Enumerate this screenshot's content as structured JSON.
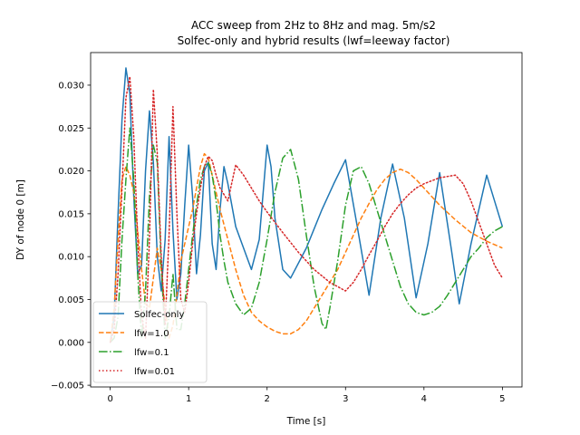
{
  "chart_data": {
    "type": "line",
    "title": "ACC sweep from 2Hz to 8Hz and mag. 5m/s2",
    "subtitle": "Solfec-only and hybrid results (lwf=leeway factor)",
    "xlabel": "Time [s]",
    "ylabel": "DY of node 0 [m]",
    "xlim": [
      -0.25,
      5.25
    ],
    "ylim": [
      -0.0052,
      0.0338
    ],
    "xticks": [
      0,
      1,
      2,
      3,
      4,
      5
    ],
    "xtick_labels": [
      "0",
      "1",
      "2",
      "3",
      "4",
      "5"
    ],
    "yticks": [
      -0.005,
      0.0,
      0.005,
      0.01,
      0.015,
      0.02,
      0.025,
      0.03
    ],
    "ytick_labels": [
      "−0.005",
      "0.000",
      "0.005",
      "0.010",
      "0.015",
      "0.020",
      "0.025",
      "0.030"
    ],
    "grid": false,
    "legend_position": "lower-left",
    "series": [
      {
        "name": "Solfec-only",
        "color": "#1f77b4",
        "dash": "solid",
        "x": [
          0.0,
          0.05,
          0.1,
          0.15,
          0.2,
          0.25,
          0.3,
          0.35,
          0.4,
          0.45,
          0.5,
          0.55,
          0.6,
          0.65,
          0.7,
          0.75,
          0.8,
          0.85,
          0.9,
          0.95,
          1.0,
          1.05,
          1.1,
          1.15,
          1.2,
          1.25,
          1.3,
          1.35,
          1.4,
          1.45,
          1.5,
          1.6,
          1.7,
          1.8,
          1.9,
          2.0,
          2.05,
          2.1,
          2.2,
          2.3,
          2.5,
          2.7,
          2.85,
          3.0,
          3.15,
          3.3,
          3.45,
          3.6,
          3.75,
          3.9,
          4.05,
          4.2,
          4.35,
          4.45,
          4.6,
          4.8,
          5.0
        ],
        "y": [
          0.0,
          0.003,
          0.015,
          0.026,
          0.032,
          0.029,
          0.017,
          0.008,
          0.009,
          0.02,
          0.027,
          0.021,
          0.01,
          0.006,
          0.012,
          0.024,
          0.013,
          0.005,
          0.008,
          0.016,
          0.023,
          0.017,
          0.008,
          0.0125,
          0.02,
          0.021,
          0.0115,
          0.0085,
          0.0155,
          0.0205,
          0.0185,
          0.0135,
          0.011,
          0.0085,
          0.012,
          0.023,
          0.0205,
          0.0145,
          0.0085,
          0.0075,
          0.011,
          0.0155,
          0.0185,
          0.0213,
          0.0135,
          0.0055,
          0.0145,
          0.0208,
          0.0145,
          0.0052,
          0.0115,
          0.0198,
          0.0108,
          0.0045,
          0.0115,
          0.0195,
          0.0135
        ]
      },
      {
        "name": "lfw=1.0",
        "color": "#ff7f0e",
        "dash": "dashed",
        "x": [
          0.0,
          0.05,
          0.1,
          0.15,
          0.2,
          0.25,
          0.3,
          0.35,
          0.4,
          0.45,
          0.5,
          0.55,
          0.6,
          0.65,
          0.7,
          0.75,
          0.8,
          0.85,
          0.9,
          0.95,
          1.0,
          1.05,
          1.1,
          1.15,
          1.2,
          1.25,
          1.3,
          1.4,
          1.5,
          1.6,
          1.7,
          1.8,
          1.9,
          2.0,
          2.1,
          2.2,
          2.3,
          2.4,
          2.5,
          2.6,
          2.7,
          2.8,
          2.9,
          3.0,
          3.1,
          3.2,
          3.3,
          3.4,
          3.5,
          3.6,
          3.7,
          3.8,
          3.9,
          4.0,
          4.2,
          4.4,
          4.6,
          4.8,
          5.0
        ],
        "y": [
          0.0,
          0.004,
          0.012,
          0.019,
          0.0205,
          0.0195,
          0.0175,
          0.013,
          0.0085,
          0.0045,
          0.004,
          0.0075,
          0.011,
          0.0085,
          0.004,
          0.0005,
          0.002,
          0.0055,
          0.0095,
          0.0115,
          0.0135,
          0.0155,
          0.018,
          0.0205,
          0.022,
          0.0215,
          0.0195,
          0.0155,
          0.012,
          0.0085,
          0.0055,
          0.0035,
          0.0025,
          0.0018,
          0.0013,
          0.001,
          0.001,
          0.0015,
          0.0025,
          0.004,
          0.0055,
          0.007,
          0.0085,
          0.0105,
          0.0125,
          0.0145,
          0.0162,
          0.0178,
          0.019,
          0.0198,
          0.0202,
          0.0198,
          0.019,
          0.018,
          0.016,
          0.0143,
          0.0128,
          0.0118,
          0.011
        ]
      },
      {
        "name": "lfw=0.1",
        "color": "#2ca02c",
        "dash": "dashdot",
        "x": [
          0.0,
          0.05,
          0.1,
          0.15,
          0.2,
          0.25,
          0.3,
          0.35,
          0.4,
          0.45,
          0.5,
          0.55,
          0.6,
          0.65,
          0.7,
          0.75,
          0.8,
          0.85,
          0.9,
          0.95,
          1.0,
          1.05,
          1.1,
          1.15,
          1.2,
          1.25,
          1.3,
          1.35,
          1.4,
          1.45,
          1.5,
          1.6,
          1.7,
          1.8,
          1.9,
          2.0,
          2.1,
          2.2,
          2.3,
          2.4,
          2.5,
          2.6,
          2.7,
          2.75,
          2.8,
          2.9,
          3.0,
          3.1,
          3.2,
          3.3,
          3.4,
          3.5,
          3.6,
          3.7,
          3.8,
          3.9,
          4.0,
          4.1,
          4.2,
          4.3,
          4.4,
          4.5,
          4.6,
          4.7,
          4.8,
          4.9,
          5.0
        ],
        "y": [
          0.0,
          0.0005,
          0.003,
          0.012,
          0.019,
          0.025,
          0.019,
          0.008,
          0.0005,
          0.006,
          0.017,
          0.023,
          0.021,
          0.009,
          0.0005,
          0.003,
          0.008,
          0.0015,
          0.0015,
          0.0045,
          0.0085,
          0.0125,
          0.016,
          0.019,
          0.0205,
          0.021,
          0.0195,
          0.0165,
          0.0125,
          0.0095,
          0.007,
          0.0045,
          0.0032,
          0.004,
          0.007,
          0.012,
          0.0175,
          0.0215,
          0.0225,
          0.019,
          0.0125,
          0.0065,
          0.0022,
          0.0015,
          0.004,
          0.0095,
          0.016,
          0.02,
          0.0205,
          0.0185,
          0.0155,
          0.0125,
          0.0095,
          0.0065,
          0.0045,
          0.0035,
          0.0032,
          0.0035,
          0.0042,
          0.0055,
          0.007,
          0.0085,
          0.01,
          0.011,
          0.0122,
          0.013,
          0.0135
        ]
      },
      {
        "name": "lfw=0.01",
        "color": "#d62728",
        "dash": "dotted",
        "x": [
          0.0,
          0.05,
          0.1,
          0.15,
          0.2,
          0.25,
          0.3,
          0.35,
          0.4,
          0.45,
          0.5,
          0.55,
          0.6,
          0.65,
          0.7,
          0.75,
          0.8,
          0.85,
          0.9,
          0.95,
          1.0,
          1.05,
          1.1,
          1.15,
          1.2,
          1.25,
          1.3,
          1.35,
          1.4,
          1.5,
          1.6,
          1.7,
          1.8,
          1.9,
          2.0,
          2.2,
          2.4,
          2.6,
          2.8,
          3.0,
          3.1,
          3.2,
          3.3,
          3.4,
          3.5,
          3.6,
          3.7,
          3.8,
          3.9,
          4.0,
          4.2,
          4.4,
          4.5,
          4.6,
          4.7,
          4.8,
          4.9,
          5.0
        ],
        "y": [
          0.0,
          0.0015,
          0.008,
          0.018,
          0.0285,
          0.031,
          0.024,
          0.012,
          0.003,
          0.0005,
          0.012,
          0.0295,
          0.022,
          0.01,
          0.002,
          0.0125,
          0.0275,
          0.015,
          0.005,
          0.0035,
          0.007,
          0.0115,
          0.015,
          0.018,
          0.0205,
          0.0217,
          0.0212,
          0.0195,
          0.018,
          0.0165,
          0.0207,
          0.0195,
          0.018,
          0.0165,
          0.0152,
          0.0128,
          0.0105,
          0.0085,
          0.007,
          0.006,
          0.007,
          0.0085,
          0.0102,
          0.0118,
          0.0135,
          0.015,
          0.0162,
          0.0172,
          0.018,
          0.0185,
          0.0192,
          0.0195,
          0.0185,
          0.0165,
          0.014,
          0.0115,
          0.009,
          0.0075
        ]
      }
    ]
  }
}
